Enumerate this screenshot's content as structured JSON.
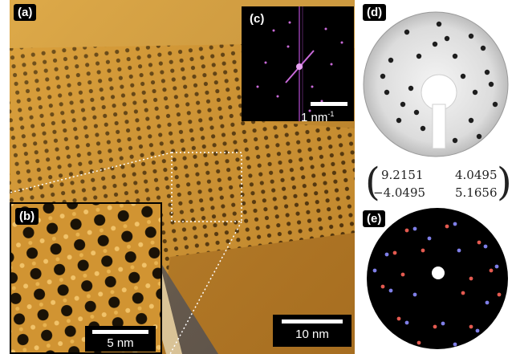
{
  "panels": {
    "a": {
      "label": "(a)",
      "scalebar": "10 nm"
    },
    "b": {
      "label": "(b)",
      "scalebar": "5 nm"
    },
    "c": {
      "label": "(c)",
      "scalebar_value": "1 nm",
      "scalebar_exp": "-1"
    },
    "d": {
      "label": "(d)"
    },
    "e": {
      "label": "(e)"
    }
  },
  "matrix": {
    "r1c1": "9.2151",
    "r1c2": "4.0495",
    "r2c1": "−4.0495",
    "r2c2": "5.1656"
  },
  "colors": {
    "stm_base": "#c48a2a",
    "stm_dark": "#6b3f0c",
    "fft_spot": "#c86ad8",
    "spot_red": "#e45a50",
    "spot_blue": "#7f7fe8"
  }
}
